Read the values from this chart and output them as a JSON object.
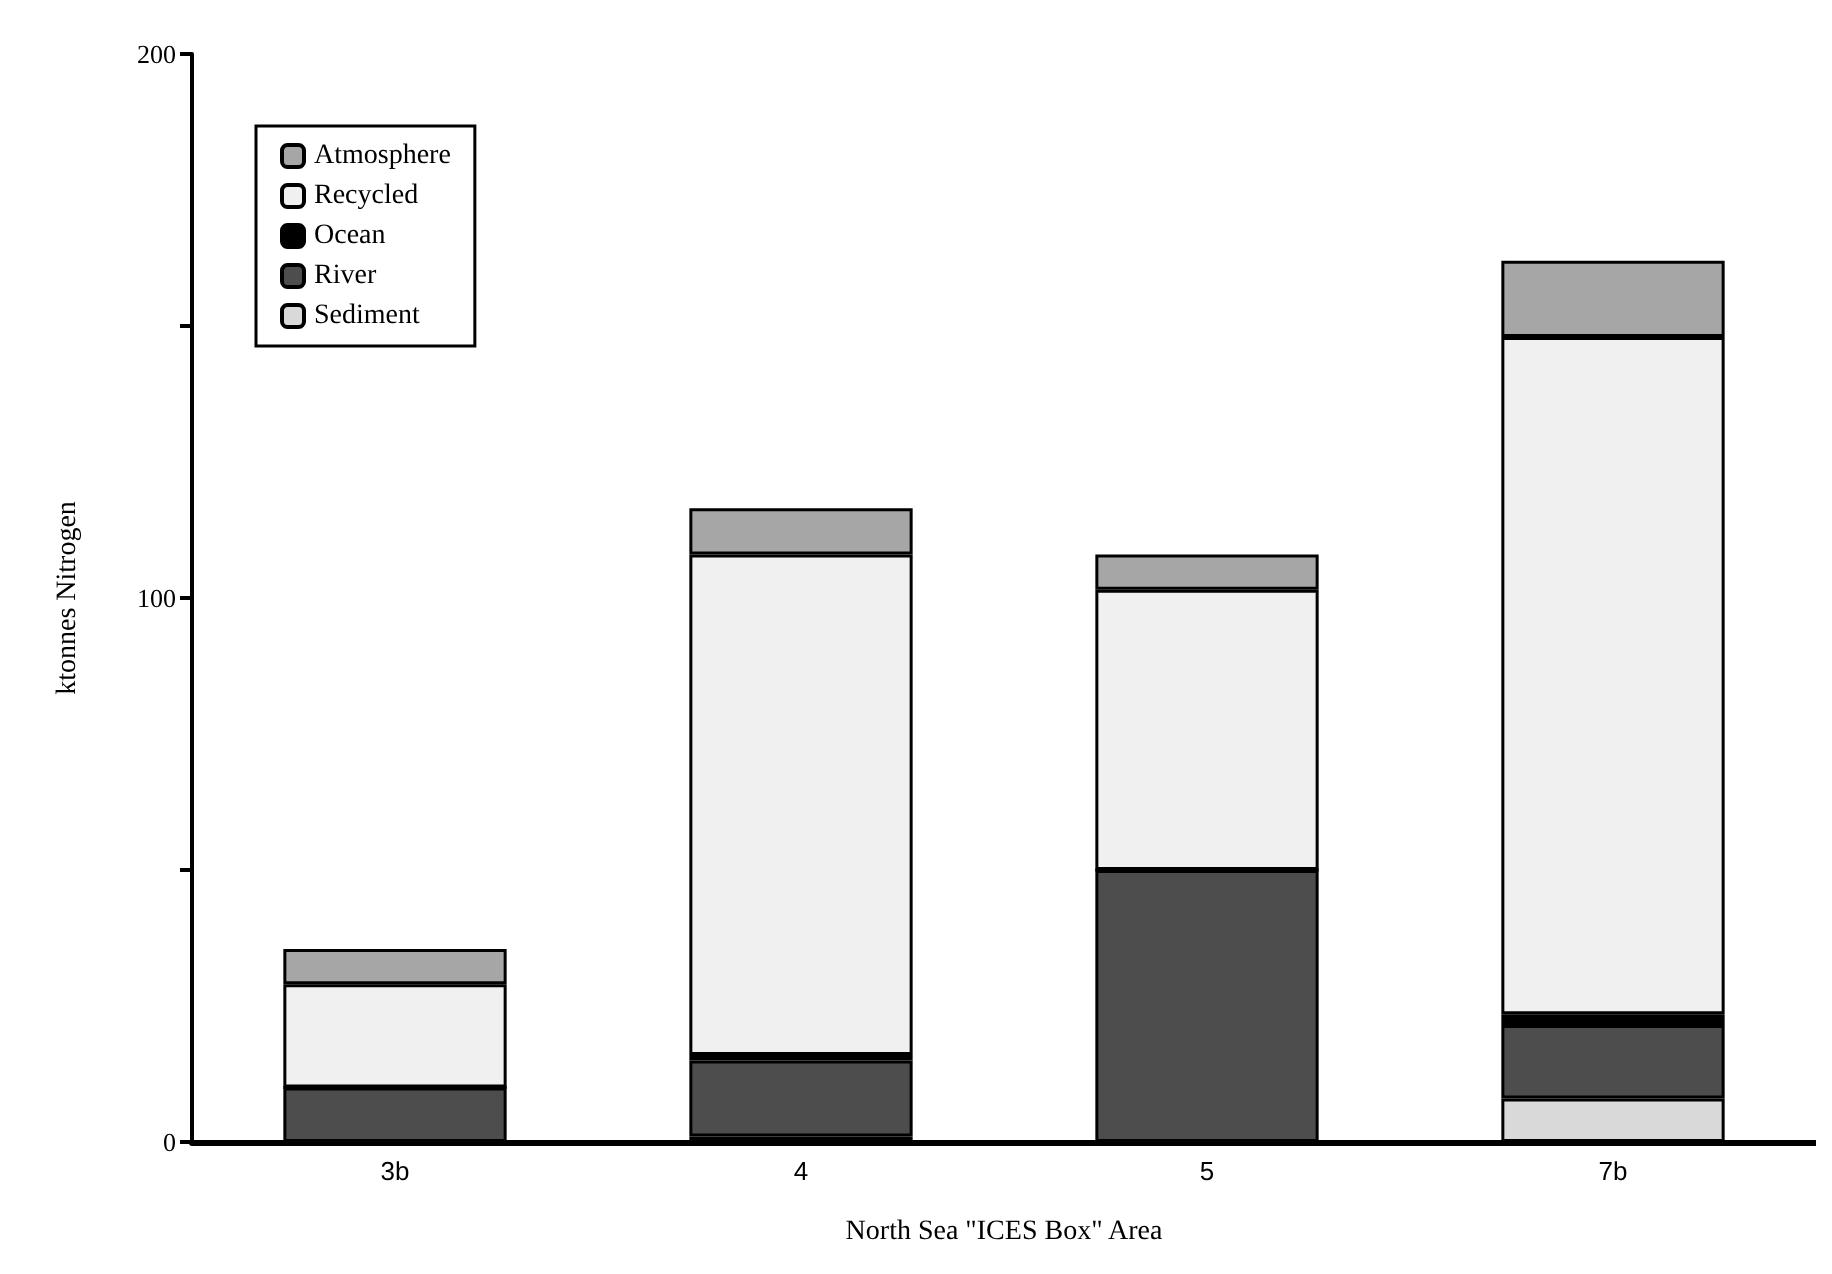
{
  "chart_data": {
    "type": "bar",
    "stacked": true,
    "xlabel": "North Sea \"ICES Box\" Area",
    "ylabel": "ktonnes Nitrogen",
    "categories": [
      "3b",
      "4",
      "5",
      "7b"
    ],
    "series": [
      {
        "name": "Sediment",
        "color": "#d9d9d9",
        "values": [
          0,
          1,
          0,
          8
        ]
      },
      {
        "name": "River",
        "color": "#4d4d4d",
        "values": [
          10,
          14,
          50,
          13.5
        ]
      },
      {
        "name": "Ocean",
        "color": "#000000",
        "values": [
          0,
          1,
          0,
          2
        ]
      },
      {
        "name": "Recycled",
        "color": "#f0f0f0",
        "values": [
          19,
          92,
          51.5,
          124.5
        ]
      },
      {
        "name": "Atmosphere",
        "color": "#a6a6a6",
        "values": [
          6.5,
          8.5,
          6.5,
          14
        ]
      }
    ],
    "ylim": [
      0,
      200
    ],
    "yticks": [
      0,
      {
        "value": 50,
        "label": null
      },
      100,
      {
        "value": 150,
        "label": null
      },
      200
    ],
    "grid": false,
    "legend": "top left"
  }
}
